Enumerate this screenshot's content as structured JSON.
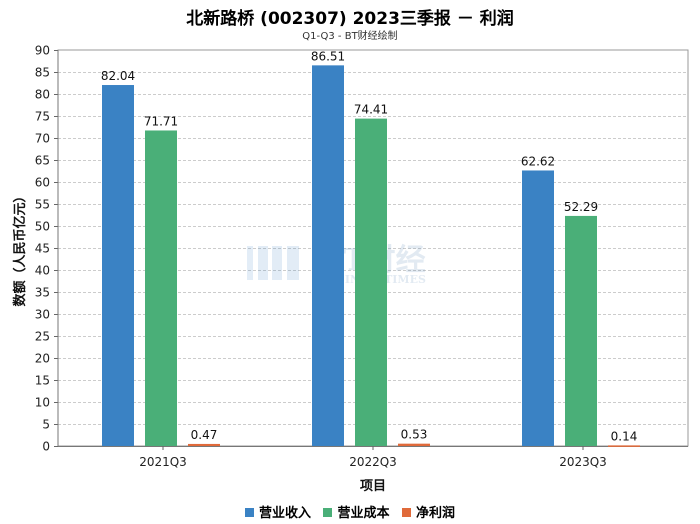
{
  "header": {
    "title": "北新路桥 (002307) 2023三季报 － 利润",
    "subtitle": "Q1-Q3 - BT财经绘制"
  },
  "watermark": {
    "main": "BT财经",
    "sub": "BUSINESSTIMES"
  },
  "colors": {
    "revenue": "#3a82c4",
    "cost": "#4aaf78",
    "profit": "#e06a3a",
    "grid": "#cccccc"
  },
  "chart_data": {
    "type": "bar",
    "categories": [
      "2021Q3",
      "2022Q3",
      "2023Q3"
    ],
    "series": [
      {
        "name": "营业收入",
        "values": [
          82.04,
          86.51,
          62.62
        ]
      },
      {
        "name": "营业成本",
        "values": [
          71.71,
          74.41,
          52.29
        ]
      },
      {
        "name": "净利润",
        "values": [
          0.47,
          0.53,
          0.14
        ]
      }
    ],
    "data_labels": [
      [
        "82.04",
        "86.51",
        "62.62"
      ],
      [
        "71.71",
        "74.41",
        "52.29"
      ],
      [
        "0.47",
        "0.53",
        "0.14"
      ]
    ],
    "xlabel": "项目",
    "ylabel": "数额（人民币亿元）",
    "ylim": [
      0,
      90
    ],
    "yticks": [
      "0",
      "5",
      "10",
      "15",
      "20",
      "25",
      "30",
      "35",
      "40",
      "45",
      "50",
      "55",
      "60",
      "65",
      "70",
      "75",
      "80",
      "85",
      "90"
    ],
    "grid": true,
    "legend_position": "bottom"
  }
}
